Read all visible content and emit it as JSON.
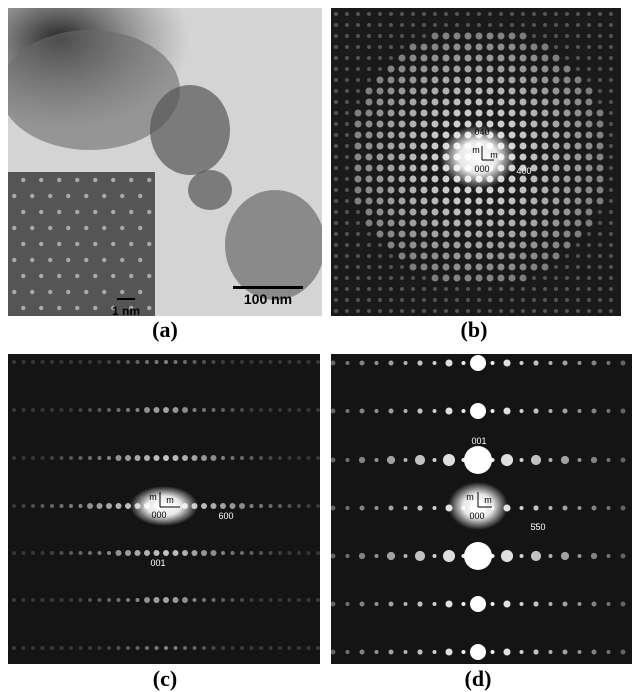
{
  "panels": [
    {
      "label": "(a)",
      "scale_bar": "100 nm",
      "inset_scale_bar": "1 nm"
    },
    {
      "label": "(b)",
      "annotations": [
        "040",
        "m",
        "m",
        "000",
        "400"
      ]
    },
    {
      "label": "(c)",
      "annotations": [
        "m",
        "m",
        "000",
        "600",
        "001"
      ]
    },
    {
      "label": "(d)",
      "annotations": [
        "001",
        "m",
        "m",
        "000",
        "5̄50"
      ]
    }
  ]
}
